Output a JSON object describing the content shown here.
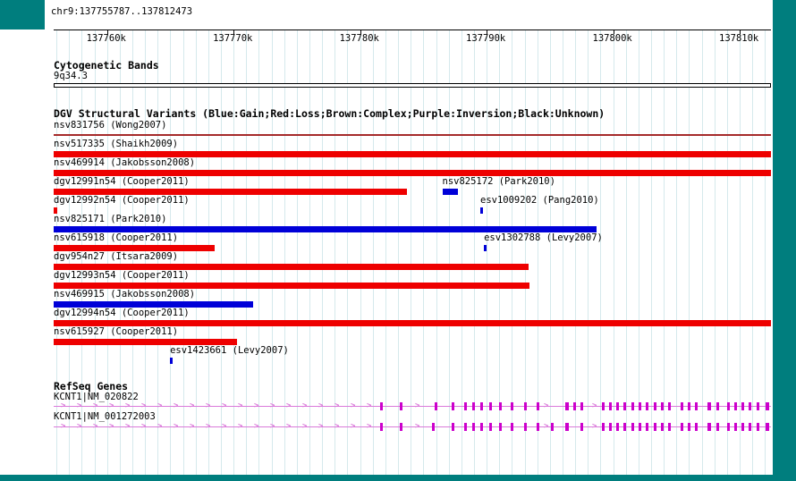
{
  "colors": {
    "page_border_teal": "#007E7E",
    "panel_background": "#FFFFFF",
    "grid_line": "#D5E9EC",
    "gain_blue": "#0000D8",
    "loss_red": "#EE0000",
    "complex_brown": "#A52A2A",
    "inversion_purple": "#800080",
    "unknown_black": "#000000",
    "gene_exon": "#CC00CC",
    "gene_line": "#DA7ADA",
    "text": "#000000"
  },
  "header": {
    "region": "chr9:137755787..137812473"
  },
  "sections": {
    "cytobands": {
      "title": "Cytogenetic Bands",
      "band_label": "9q34.3"
    },
    "dgv": {
      "title": "DGV Structural Variants (Blue:Gain;Red:Loss;Brown:Complex;Purple:Inversion;Black:Unknown)"
    },
    "genes": {
      "title": "RefSeq Genes"
    }
  },
  "chart_data": {
    "type": "genome-browser-tracks",
    "region": {
      "chromosome": "chr9",
      "start": 137755787,
      "end": 137812473
    },
    "ruler": {
      "grid_interval_bp": 1000,
      "ticks": [
        {
          "bp": 137760000,
          "label": "137760k"
        },
        {
          "bp": 137770000,
          "label": "137770k"
        },
        {
          "bp": 137780000,
          "label": "137780k"
        },
        {
          "bp": 137790000,
          "label": "137790k"
        },
        {
          "bp": 137800000,
          "label": "137800k"
        },
        {
          "bp": 137810000,
          "label": "137810k"
        }
      ]
    },
    "legend": {
      "Blue": "Gain",
      "Red": "Loss",
      "Brown": "Complex",
      "Purple": "Inversion",
      "Black": "Unknown"
    },
    "cytobands": [
      {
        "name": "9q34.3",
        "start": 137755787,
        "end": 137812473
      }
    ],
    "variant_rows": [
      [
        {
          "label": "nsv831756 (Wong2007)",
          "start": 137755787,
          "end": 137812473,
          "type": "complex",
          "thin": true
        }
      ],
      [
        {
          "label": "nsv517335 (Shaikh2009)",
          "start": 137755787,
          "end": 137812473,
          "type": "loss"
        }
      ],
      [
        {
          "label": "nsv469914 (Jakobsson2008)",
          "start": 137755787,
          "end": 137812473,
          "type": "loss"
        }
      ],
      [
        {
          "label": "dgv12991n54 (Cooper2011)",
          "start": 137755787,
          "end": 137783700,
          "type": "loss"
        },
        {
          "label": "nsv825172 (Park2010)",
          "start": 137786500,
          "end": 137787750,
          "type": "gain"
        }
      ],
      [
        {
          "label": "dgv12992n54 (Cooper2011)",
          "start": 137755787,
          "end": 137756100,
          "type": "loss"
        },
        {
          "label": "esv1009202 (Pang2010)",
          "start": 137789500,
          "end": 137789730,
          "type": "gain"
        }
      ],
      [
        {
          "label": "nsv825171 (Park2010)",
          "start": 137755787,
          "end": 137798700,
          "type": "gain"
        }
      ],
      [
        {
          "label": "nsv615918 (Cooper2011)",
          "start": 137755787,
          "end": 137768500,
          "type": "loss"
        },
        {
          "label": "esv1302788 (Levy2007)",
          "start": 137789790,
          "end": 137790020,
          "type": "gain"
        }
      ],
      [
        {
          "label": "dgv954n27 (Itsara2009)",
          "start": 137755787,
          "end": 137793320,
          "type": "loss"
        }
      ],
      [
        {
          "label": "dgv12993n54 (Cooper2011)",
          "start": 137755787,
          "end": 137793400,
          "type": "loss"
        }
      ],
      [
        {
          "label": "nsv469915 (Jakobsson2008)",
          "start": 137755787,
          "end": 137771550,
          "type": "gain"
        }
      ],
      [
        {
          "label": "dgv12994n54 (Cooper2011)",
          "start": 137755787,
          "end": 137812473,
          "type": "loss"
        }
      ],
      [
        {
          "label": "nsv615927 (Cooper2011)",
          "start": 137755787,
          "end": 137770280,
          "type": "loss"
        }
      ],
      [
        {
          "label": "esv1423661 (Levy2007)",
          "start": 137764980,
          "end": 137765210,
          "type": "gain"
        }
      ]
    ],
    "transcripts": [
      {
        "label": "KCNT1|NM_020822",
        "start": 137755787,
        "end": 137812473,
        "strand": "+",
        "exons": [
          [
            137781585,
            137781820
          ],
          [
            137783140,
            137783370
          ],
          [
            137785897,
            137786130
          ],
          [
            137787240,
            137787470
          ],
          [
            137788229,
            137788460
          ],
          [
            137788865,
            137789095
          ],
          [
            137789501,
            137789730
          ],
          [
            137790208,
            137790440
          ],
          [
            137790986,
            137791215
          ],
          [
            137791904,
            137792135
          ],
          [
            137792965,
            137793195
          ],
          [
            137793954,
            137794185
          ],
          [
            137796216,
            137796500
          ],
          [
            137796852,
            137797080
          ],
          [
            137797417,
            137797650
          ],
          [
            137799114,
            137799345
          ],
          [
            137799679,
            137799910
          ],
          [
            137800245,
            137800475
          ],
          [
            137800810,
            137801040
          ],
          [
            137801446,
            137801675
          ],
          [
            137802012,
            137802240
          ],
          [
            137802577,
            137802810
          ],
          [
            137803213,
            137803445
          ],
          [
            137803779,
            137804010
          ],
          [
            137804344,
            137804575
          ],
          [
            137805334,
            137805565
          ],
          [
            137805899,
            137806130
          ],
          [
            137806465,
            137806695
          ],
          [
            137807454,
            137807740
          ],
          [
            137808161,
            137808390
          ],
          [
            137809009,
            137809240
          ],
          [
            137809575,
            137809805
          ],
          [
            137810140,
            137810370
          ],
          [
            137810705,
            137810935
          ],
          [
            137811342,
            137811575
          ],
          [
            137812048,
            137812330
          ]
        ]
      },
      {
        "label": "KCNT1|NM_001272003",
        "start": 137755787,
        "end": 137812473,
        "strand": "+",
        "exons": [
          [
            137781585,
            137781820
          ],
          [
            137783140,
            137783370
          ],
          [
            137785700,
            137785930
          ],
          [
            137787240,
            137787470
          ],
          [
            137788229,
            137788460
          ],
          [
            137788865,
            137789095
          ],
          [
            137789501,
            137789730
          ],
          [
            137790208,
            137790440
          ],
          [
            137790986,
            137791215
          ],
          [
            137791904,
            137792135
          ],
          [
            137792965,
            137793195
          ],
          [
            137793954,
            137794185
          ],
          [
            137795100,
            137795330
          ],
          [
            137796216,
            137796500
          ],
          [
            137797417,
            137797650
          ],
          [
            137799114,
            137799345
          ],
          [
            137799679,
            137799910
          ],
          [
            137800245,
            137800475
          ],
          [
            137800810,
            137801040
          ],
          [
            137801446,
            137801675
          ],
          [
            137802012,
            137802240
          ],
          [
            137802577,
            137802810
          ],
          [
            137803213,
            137803445
          ],
          [
            137803779,
            137804010
          ],
          [
            137804344,
            137804575
          ],
          [
            137805334,
            137805565
          ],
          [
            137805899,
            137806130
          ],
          [
            137806465,
            137806695
          ],
          [
            137807454,
            137807740
          ],
          [
            137808161,
            137808390
          ],
          [
            137809009,
            137809240
          ],
          [
            137809575,
            137809805
          ],
          [
            137810140,
            137810370
          ],
          [
            137810705,
            137810935
          ],
          [
            137811342,
            137811575
          ],
          [
            137812048,
            137812330
          ]
        ]
      }
    ]
  }
}
